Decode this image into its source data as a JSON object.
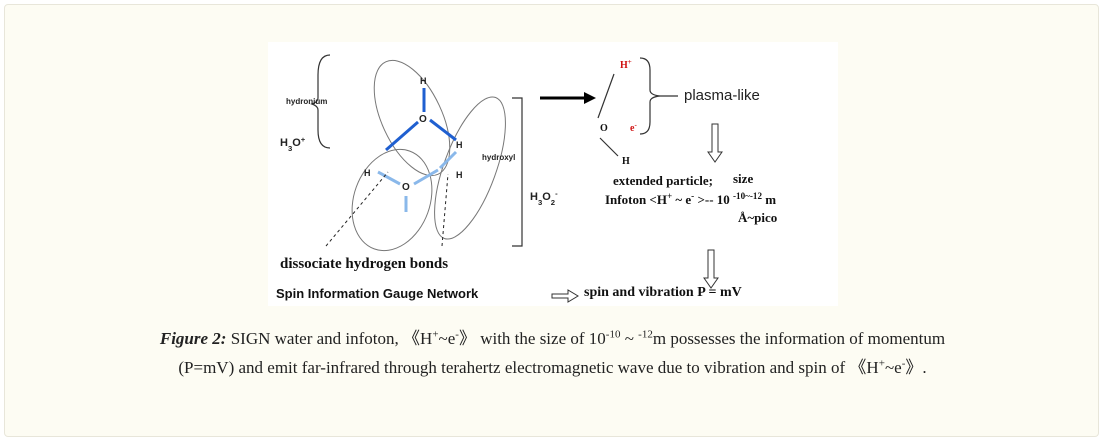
{
  "figure": {
    "labels": [
      [
        "hydronium"
      ],
      [
        "H",
        {
          "sub": "3"
        },
        "O",
        {
          "sup": "+"
        }
      ],
      [
        "H"
      ],
      [
        "O"
      ],
      [
        "H"
      ],
      [
        "H"
      ],
      [
        "H"
      ],
      [
        "O"
      ],
      [
        "hydroxyl"
      ],
      [
        "H",
        {
          "sub": "3"
        },
        "O",
        {
          "sub": "2"
        },
        {
          "sup": "-"
        }
      ],
      [
        "dissociate hydrogen bonds"
      ],
      [
        "H",
        {
          "sup": "+"
        }
      ],
      [
        "O"
      ],
      [
        "e",
        {
          "sup": "-"
        }
      ],
      [
        "H"
      ],
      [
        "plasma-like"
      ],
      [
        "extended particle;"
      ],
      [
        "size"
      ],
      [
        "Infoton  <H",
        {
          "sup": "+"
        },
        " ~ e",
        {
          "sup": "-"
        },
        " >-- 10 ",
        {
          "sup": "-10~-12"
        },
        " m"
      ],
      [
        "Å~pico"
      ],
      [
        "Spin Information Gauge Network"
      ],
      [
        "spin and vibration  P = mV"
      ]
    ]
  },
  "caption": {
    "label": "Figure 2:",
    "segments": [
      " SIGN water and infoton, 《H",
      {
        "sup": "+"
      },
      "~e",
      {
        "sup": "-"
      },
      "》  with the size of 10",
      {
        "sup": "-10"
      },
      " ~ ",
      {
        "sup": "-12"
      },
      "m possesses the information of momentum (P=mV) and emit far-infrared through terahertz electromagnetic wave due to vibration and spin of 《H",
      {
        "sup": "+"
      },
      "~e",
      {
        "sup": "-"
      },
      "》."
    ]
  }
}
